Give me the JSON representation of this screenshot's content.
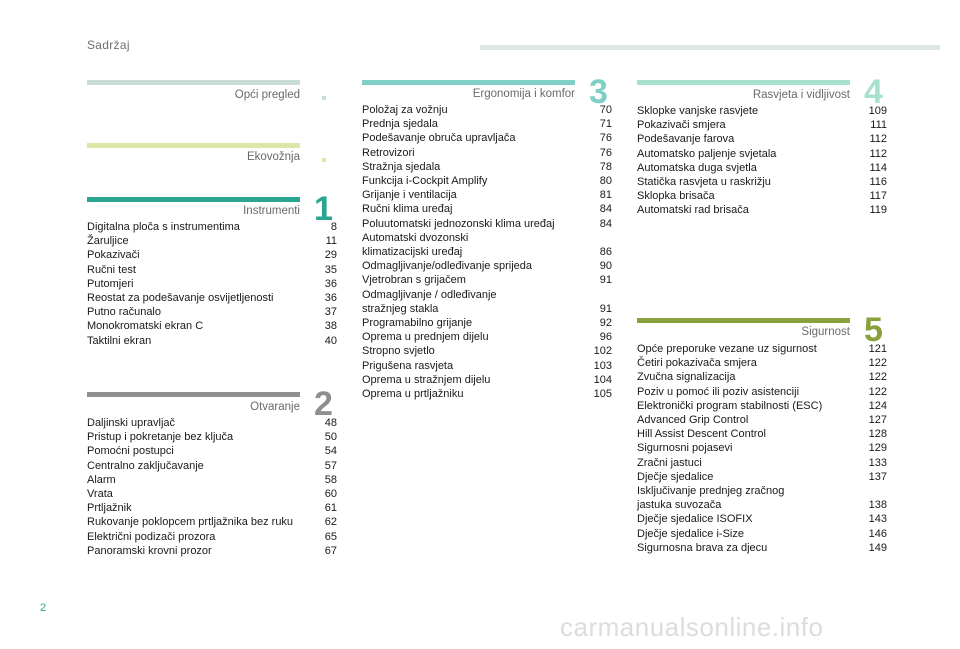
{
  "header": {
    "title": "Sadržaj"
  },
  "page_number": "2",
  "watermark": "carmanualsonline.info",
  "sections": {
    "opci": {
      "title": "Opći pregled",
      "color": "#c9dcd7"
    },
    "eko": {
      "title": "Ekovožnja",
      "color": "#dde6a8"
    },
    "s1": {
      "number": "1",
      "title": "Instrumenti",
      "color": "#2aa58f",
      "entries": [
        {
          "title": "Digitalna ploča s instrumentima",
          "page": "8"
        },
        {
          "title": "Žaruljice",
          "page": "11"
        },
        {
          "title": "Pokazivači",
          "page": "29"
        },
        {
          "title": "Ručni test",
          "page": "35"
        },
        {
          "title": "Putomjeri",
          "page": "36"
        },
        {
          "title": "Reostat za podešavanje osvijetljenosti",
          "page": "36"
        },
        {
          "title": "Putno računalo",
          "page": "37"
        },
        {
          "title": "Monokromatski ekran C",
          "page": "38"
        },
        {
          "title": "Taktilni ekran",
          "page": "40"
        }
      ]
    },
    "s2": {
      "number": "2",
      "title": "Otvaranje",
      "color": "#8f8f8f",
      "entries": [
        {
          "title": "Daljinski upravljač",
          "page": "48"
        },
        {
          "title": "Pristup i pokretanje bez ključa",
          "page": "50"
        },
        {
          "title": "Pomoćni postupci",
          "page": "54"
        },
        {
          "title": "Centralno zaključavanje",
          "page": "57"
        },
        {
          "title": "Alarm",
          "page": "58"
        },
        {
          "title": "Vrata",
          "page": "60"
        },
        {
          "title": "Prtljažnik",
          "page": "61"
        },
        {
          "title": "Rukovanje poklopcem prtljažnika bez ruku",
          "page": "62"
        },
        {
          "title": "Električni podizači prozora",
          "page": "65"
        },
        {
          "title": "Panoramski krovni prozor",
          "page": "67"
        }
      ]
    },
    "s3": {
      "number": "3",
      "title": "Ergonomija i komfor",
      "color": "#7fcfc4",
      "entries": [
        {
          "title": "Položaj za vožnju",
          "page": "70"
        },
        {
          "title": "Prednja sjedala",
          "page": "71"
        },
        {
          "title": "Podešavanje obruča upravljača",
          "page": "76"
        },
        {
          "title": "Retrovizori",
          "page": "76"
        },
        {
          "title": "Stražnja sjedala",
          "page": "78"
        },
        {
          "title": "Funkcija i-Cockpit Amplify",
          "page": "80"
        },
        {
          "title": "Grijanje i ventilacija",
          "page": "81"
        },
        {
          "title": "Ručni klima uređaj",
          "page": "84"
        },
        {
          "title": "Poluutomatski jednozonski klima uređaj",
          "page": "84"
        },
        {
          "title": "Automatski dvozonski\n    klimatizacijski uređaj",
          "page": "86"
        },
        {
          "title": "Odmagljivanje/odleđivanje sprijeda",
          "page": "90"
        },
        {
          "title": "Vjetrobran s grijačem",
          "page": "91"
        },
        {
          "title": "Odmagljivanje / odleđivanje\n    stražnjeg stakla",
          "page": "91"
        },
        {
          "title": "Programabilno grijanje",
          "page": "92"
        },
        {
          "title": "Oprema u prednjem dijelu",
          "page": "96"
        },
        {
          "title": "Stropno svjetlo",
          "page": "102"
        },
        {
          "title": "Prigušena rasvjeta",
          "page": "103"
        },
        {
          "title": "Oprema u stražnjem dijelu",
          "page": "104"
        },
        {
          "title": "Oprema u prtljažniku",
          "page": "105"
        }
      ]
    },
    "s4": {
      "number": "4",
      "title": "Rasvjeta i vidljivost",
      "color": "#a8e0cf",
      "entries": [
        {
          "title": "Sklopke vanjske rasvjete",
          "page": "109"
        },
        {
          "title": "Pokazivači smjera",
          "page": "111"
        },
        {
          "title": "Podešavanje farova",
          "page": "112"
        },
        {
          "title": "Automatsko paljenje svjetala",
          "page": "112"
        },
        {
          "title": "Automatska duga svjetla",
          "page": "114"
        },
        {
          "title": "Statička rasvjeta u raskrižju",
          "page": "116"
        },
        {
          "title": "Sklopka brisača",
          "page": "117"
        },
        {
          "title": "Automatski rad brisača",
          "page": "119"
        }
      ]
    },
    "s5": {
      "number": "5",
      "title": "Sigurnost",
      "color": "#8aa03a",
      "entries": [
        {
          "title": "Opće preporuke vezane uz sigurnost",
          "page": "121"
        },
        {
          "title": "Četiri pokazivača smjera",
          "page": "122"
        },
        {
          "title": "Zvučna signalizacija",
          "page": "122"
        },
        {
          "title": "Poziv u pomoć ili poziv asistenciji",
          "page": "122"
        },
        {
          "title": "Elektronički program stabilnosti (ESC)",
          "page": "124"
        },
        {
          "title": "Advanced Grip Control",
          "page": "127"
        },
        {
          "title": "Hill Assist Descent Control",
          "page": "128"
        },
        {
          "title": "Sigurnosni pojasevi",
          "page": "129"
        },
        {
          "title": "Zračni jastuci",
          "page": "133"
        },
        {
          "title": "Dječje sjedalice",
          "page": "137"
        },
        {
          "title": "Isključivanje prednjeg zračnog\n    jastuka suvozača",
          "page": "138"
        },
        {
          "title": "Dječje sjedalice ISOFIX",
          "page": "143"
        },
        {
          "title": "Dječje sjedalice i-Size",
          "page": "146"
        },
        {
          "title": "Sigurnosna brava za djecu",
          "page": "149"
        }
      ]
    }
  }
}
